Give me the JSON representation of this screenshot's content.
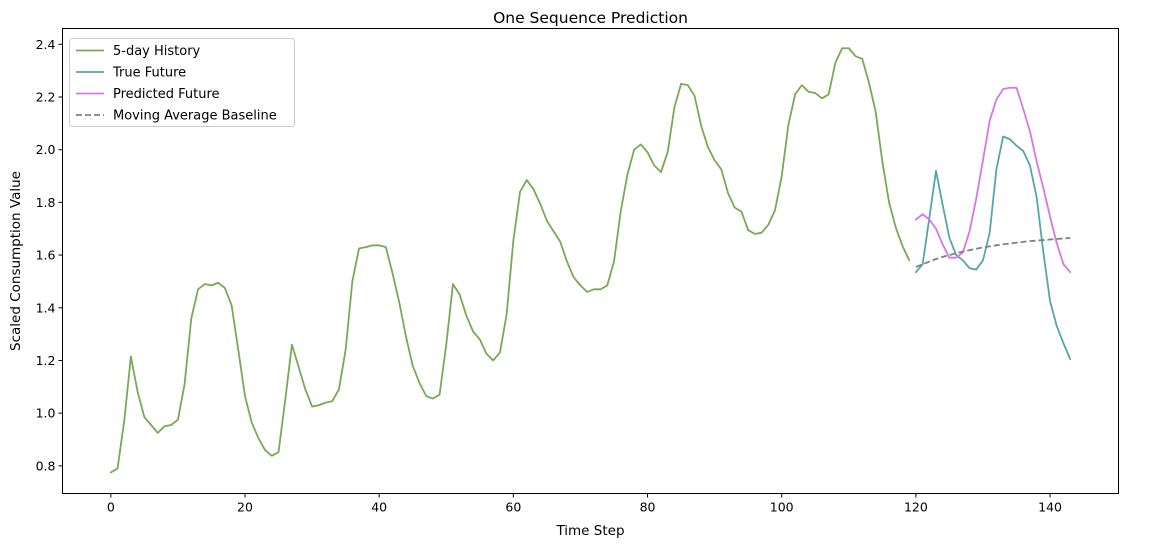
{
  "chart_data": {
    "type": "line",
    "title": "One Sequence Prediction",
    "xlabel": "Time Step",
    "ylabel": "Scaled Consumption Value",
    "xlim": [
      -7.2,
      150.2
    ],
    "ylim": [
      0.695,
      2.46
    ],
    "xticks": [
      0,
      20,
      40,
      60,
      80,
      100,
      120,
      140
    ],
    "yticks": [
      0.8,
      1.0,
      1.2,
      1.4,
      1.6,
      1.8,
      2.0,
      2.2,
      2.4
    ],
    "xtick_labels": [
      "0",
      "20",
      "40",
      "60",
      "80",
      "100",
      "120",
      "140"
    ],
    "ytick_labels": [
      "0.8",
      "1.0",
      "1.2",
      "1.4",
      "1.6",
      "1.8",
      "2.0",
      "2.2",
      "2.4"
    ],
    "grid": false,
    "legend_position": "top-left",
    "series": [
      {
        "name": "5-day History",
        "color": "#77aa55",
        "style": "solid",
        "x_start": 0,
        "values": [
          0.775,
          0.79,
          0.97,
          1.215,
          1.08,
          0.985,
          0.955,
          0.925,
          0.95,
          0.955,
          0.975,
          1.11,
          1.36,
          1.47,
          1.49,
          1.485,
          1.495,
          1.475,
          1.41,
          1.24,
          1.065,
          0.965,
          0.905,
          0.86,
          0.838,
          0.852,
          1.05,
          1.26,
          1.175,
          1.09,
          1.025,
          1.03,
          1.04,
          1.045,
          1.09,
          1.24,
          1.5,
          1.625,
          1.63,
          1.637,
          1.637,
          1.63,
          1.53,
          1.42,
          1.29,
          1.18,
          1.115,
          1.065,
          1.055,
          1.07,
          1.26,
          1.49,
          1.45,
          1.37,
          1.31,
          1.28,
          1.225,
          1.2,
          1.23,
          1.375,
          1.655,
          1.84,
          1.885,
          1.85,
          1.795,
          1.73,
          1.69,
          1.65,
          1.575,
          1.515,
          1.485,
          1.46,
          1.47,
          1.47,
          1.485,
          1.575,
          1.765,
          1.905,
          2.0,
          2.02,
          1.99,
          1.94,
          1.915,
          1.99,
          2.16,
          2.25,
          2.245,
          2.205,
          2.09,
          2.01,
          1.96,
          1.925,
          1.835,
          1.78,
          1.765,
          1.695,
          1.68,
          1.685,
          1.715,
          1.77,
          1.9,
          2.095,
          2.21,
          2.245,
          2.22,
          2.215,
          2.195,
          2.21,
          2.33,
          2.385,
          2.385,
          2.355,
          2.345,
          2.255,
          2.145,
          1.955,
          1.8,
          1.705,
          1.635,
          1.58
        ]
      },
      {
        "name": "True Future",
        "color": "#55a7a7",
        "style": "solid",
        "x_start": 120,
        "values": [
          1.535,
          1.565,
          1.74,
          1.92,
          1.79,
          1.665,
          1.6,
          1.58,
          1.55,
          1.545,
          1.58,
          1.685,
          1.925,
          2.05,
          2.04,
          2.015,
          1.995,
          1.94,
          1.82,
          1.61,
          1.425,
          1.33,
          1.265,
          1.205
        ]
      },
      {
        "name": "Predicted Future",
        "color": "#d876e6",
        "style": "solid",
        "x_start": 120,
        "values": [
          1.735,
          1.755,
          1.735,
          1.7,
          1.64,
          1.59,
          1.59,
          1.61,
          1.69,
          1.815,
          1.96,
          2.11,
          2.19,
          2.23,
          2.235,
          2.235,
          2.155,
          2.07,
          1.955,
          1.855,
          1.745,
          1.645,
          1.565,
          1.535
        ]
      },
      {
        "name": "Moving Average Baseline",
        "color": "#808080",
        "style": "dashed",
        "x_start": 120,
        "values": [
          1.555,
          1.565,
          1.575,
          1.585,
          1.593,
          1.6,
          1.607,
          1.613,
          1.619,
          1.624,
          1.629,
          1.633,
          1.637,
          1.641,
          1.644,
          1.647,
          1.65,
          1.653,
          1.655,
          1.657,
          1.659,
          1.661,
          1.663,
          1.665
        ]
      }
    ]
  }
}
